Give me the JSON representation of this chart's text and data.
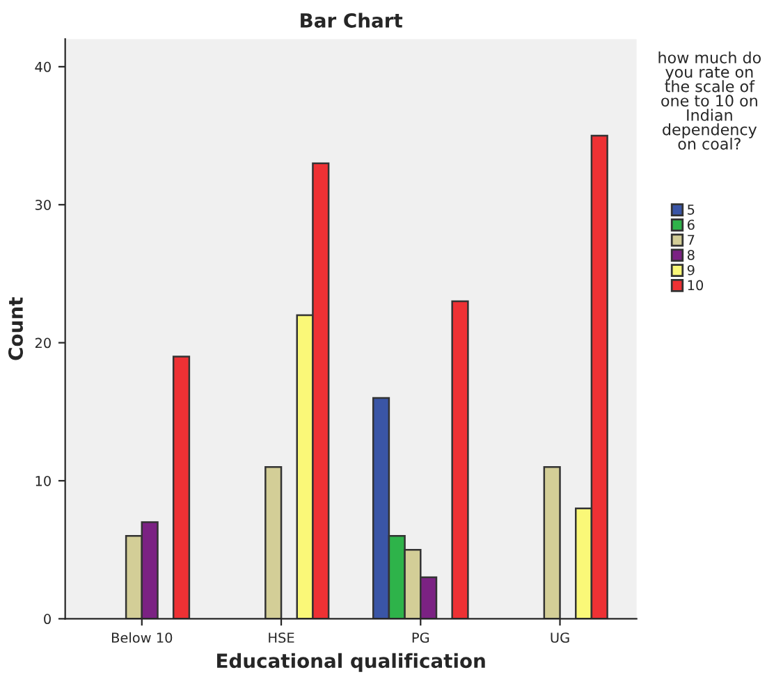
{
  "chart_data": {
    "type": "bar",
    "title": "Bar Chart",
    "xlabel": "Educational qualification",
    "ylabel": "Count",
    "legend_title": "how much do you rate on the scale of one to 10 on Indian dependency on coal?",
    "categories": [
      "Below 10",
      "HSE",
      "PG",
      "UG"
    ],
    "series": [
      {
        "name": "5",
        "color": "#3a55a6",
        "values": [
          null,
          null,
          16,
          null
        ]
      },
      {
        "name": "6",
        "color": "#2eb34a",
        "values": [
          null,
          null,
          6,
          null
        ]
      },
      {
        "name": "7",
        "color": "#d3ce97",
        "values": [
          6,
          11,
          5,
          11
        ]
      },
      {
        "name": "8",
        "color": "#7b2283",
        "values": [
          7,
          null,
          3,
          null
        ]
      },
      {
        "name": "9",
        "color": "#faf878",
        "values": [
          null,
          22,
          null,
          8
        ]
      },
      {
        "name": "10",
        "color": "#ee3134",
        "values": [
          19,
          33,
          23,
          35
        ]
      }
    ],
    "ylim": [
      0,
      42
    ],
    "yticks": [
      0,
      10,
      20,
      30,
      40
    ],
    "grid": false,
    "legend": "right"
  }
}
